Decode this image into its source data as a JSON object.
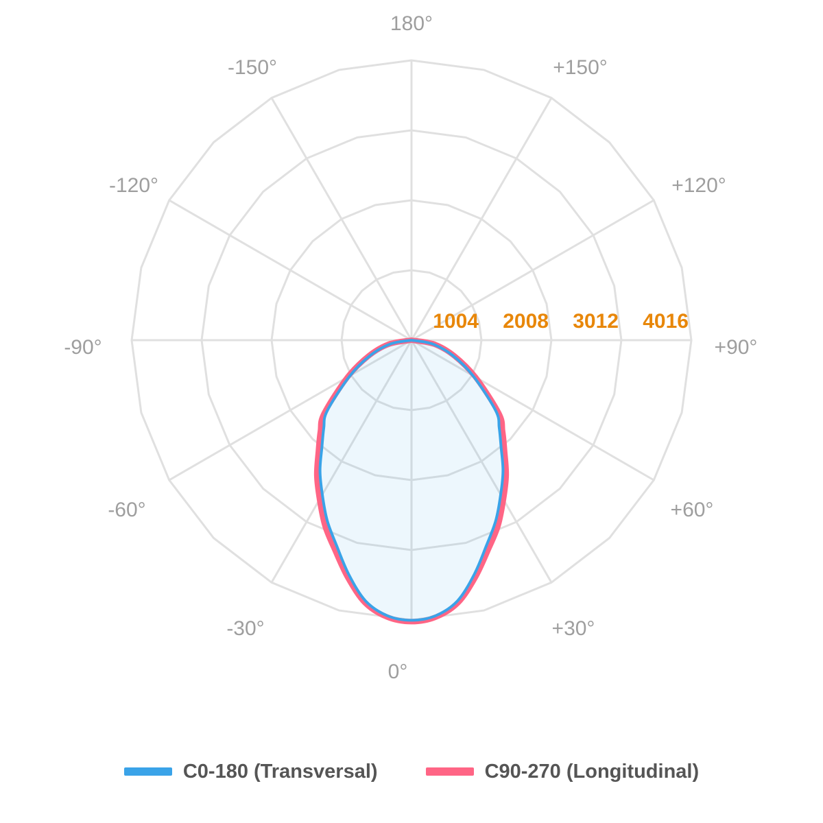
{
  "chart_data": {
    "type": "polar",
    "angle_labels": [
      "180°",
      "+150°",
      "+120°",
      "+90°",
      "+60°",
      "+30°",
      "0°",
      "-30°",
      "-60°",
      "-90°",
      "-120°",
      "-150°"
    ],
    "angle_values": [
      180,
      150,
      120,
      90,
      60,
      30,
      0,
      -30,
      -60,
      -90,
      -120,
      -150
    ],
    "radial_ticks": [
      1004,
      2008,
      3012,
      4016
    ],
    "radial_max": 4016,
    "grid": true,
    "legend_position": "bottom",
    "series": [
      {
        "name": "C0-180 (Transversal)",
        "color": "#3aa3e8",
        "fill": true,
        "angles": [
          -90,
          -80,
          -70,
          -60,
          -50,
          -45,
          -40,
          -35,
          -30,
          -25,
          -20,
          -15,
          -10,
          -5,
          0,
          5,
          10,
          15,
          20,
          25,
          30,
          35,
          40,
          45,
          50,
          60,
          70,
          80,
          90
        ],
        "values": [
          0,
          300,
          620,
          1020,
          1580,
          1780,
          2000,
          2290,
          2560,
          2860,
          3140,
          3480,
          3800,
          3970,
          4020,
          3970,
          3800,
          3480,
          3140,
          2860,
          2560,
          2290,
          2000,
          1780,
          1580,
          1020,
          620,
          300,
          0
        ]
      },
      {
        "name": "C90-270 (Longitudinal)",
        "color": "#ff6585",
        "fill": false,
        "angles": [
          -90,
          -80,
          -70,
          -60,
          -50,
          -45,
          -40,
          -35,
          -30,
          -25,
          -20,
          -15,
          -10,
          -5,
          0,
          5,
          10,
          15,
          20,
          25,
          30,
          35,
          40,
          45,
          50,
          60,
          70,
          80,
          90
        ],
        "values": [
          0,
          330,
          650,
          1060,
          1640,
          1850,
          2080,
          2370,
          2640,
          2940,
          3210,
          3530,
          3830,
          3990,
          4040,
          3990,
          3830,
          3530,
          3210,
          2940,
          2640,
          2370,
          2080,
          1850,
          1640,
          1060,
          650,
          330,
          0
        ]
      }
    ]
  }
}
